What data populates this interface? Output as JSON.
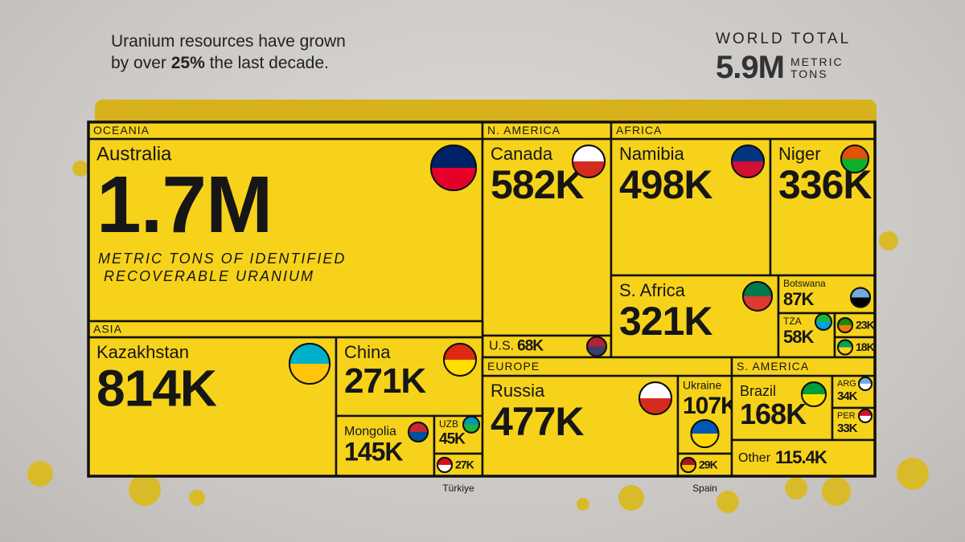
{
  "chart_data": {
    "type": "treemap",
    "subtitle_line1": "Uranium resources have grown",
    "subtitle_before": "by over",
    "subtitle_highlight": "25%",
    "subtitle_after": "the last decade.",
    "total_title": "WORLD TOTAL",
    "total_value": 5900000,
    "total_label": "5.9M",
    "total_unit": "METRIC TONS",
    "note": "METRIC TONS OF IDENTIFIED RECOVERABLE URANIUM",
    "color": "#f6d21a",
    "regions": [
      {
        "name": "OCEANIA",
        "items": [
          {
            "name": "Australia",
            "value": 1700000,
            "value_label": "1.7M"
          }
        ]
      },
      {
        "name": "N. AMERICA",
        "items": [
          {
            "name": "Canada",
            "value": 582000,
            "value_label": "582K"
          },
          {
            "name": "U.S.",
            "value": 68000,
            "value_label": "68K"
          }
        ]
      },
      {
        "name": "AFRICA",
        "items": [
          {
            "name": "Namibia",
            "value": 498000,
            "value_label": "498K"
          },
          {
            "name": "Niger",
            "value": 336000,
            "value_label": "336K"
          },
          {
            "name": "S. Africa",
            "value": 321000,
            "value_label": "321K"
          },
          {
            "name": "Botswana",
            "value": 87000,
            "value_label": "87K"
          },
          {
            "name": "TZA",
            "value": 58000,
            "value_label": "58K"
          },
          {
            "name": null,
            "value": 23000,
            "value_label": "23K"
          },
          {
            "name": null,
            "value": 18000,
            "value_label": "18K"
          }
        ]
      },
      {
        "name": "ASIA",
        "items": [
          {
            "name": "Kazakhstan",
            "value": 814000,
            "value_label": "814K"
          },
          {
            "name": "China",
            "value": 271000,
            "value_label": "271K"
          },
          {
            "name": "Mongolia",
            "value": 145000,
            "value_label": "145K"
          },
          {
            "name": "UZB",
            "value": 45000,
            "value_label": "45K"
          },
          {
            "name": "Türkiye",
            "value": 27000,
            "value_label": "27K"
          }
        ]
      },
      {
        "name": "EUROPE",
        "items": [
          {
            "name": "Russia",
            "value": 477000,
            "value_label": "477K"
          },
          {
            "name": "Ukraine",
            "value": 107000,
            "value_label": "107K"
          },
          {
            "name": "Spain",
            "value": 29000,
            "value_label": "29K"
          }
        ]
      },
      {
        "name": "S. AMERICA",
        "items": [
          {
            "name": "Brazil",
            "value": 168000,
            "value_label": "168K"
          },
          {
            "name": "ARG",
            "value": 34000,
            "value_label": "34K"
          },
          {
            "name": "PER",
            "value": 33000,
            "value_label": "33K"
          }
        ]
      }
    ],
    "other": {
      "name": "Other",
      "value": 115400,
      "value_label": "115.4K"
    }
  }
}
